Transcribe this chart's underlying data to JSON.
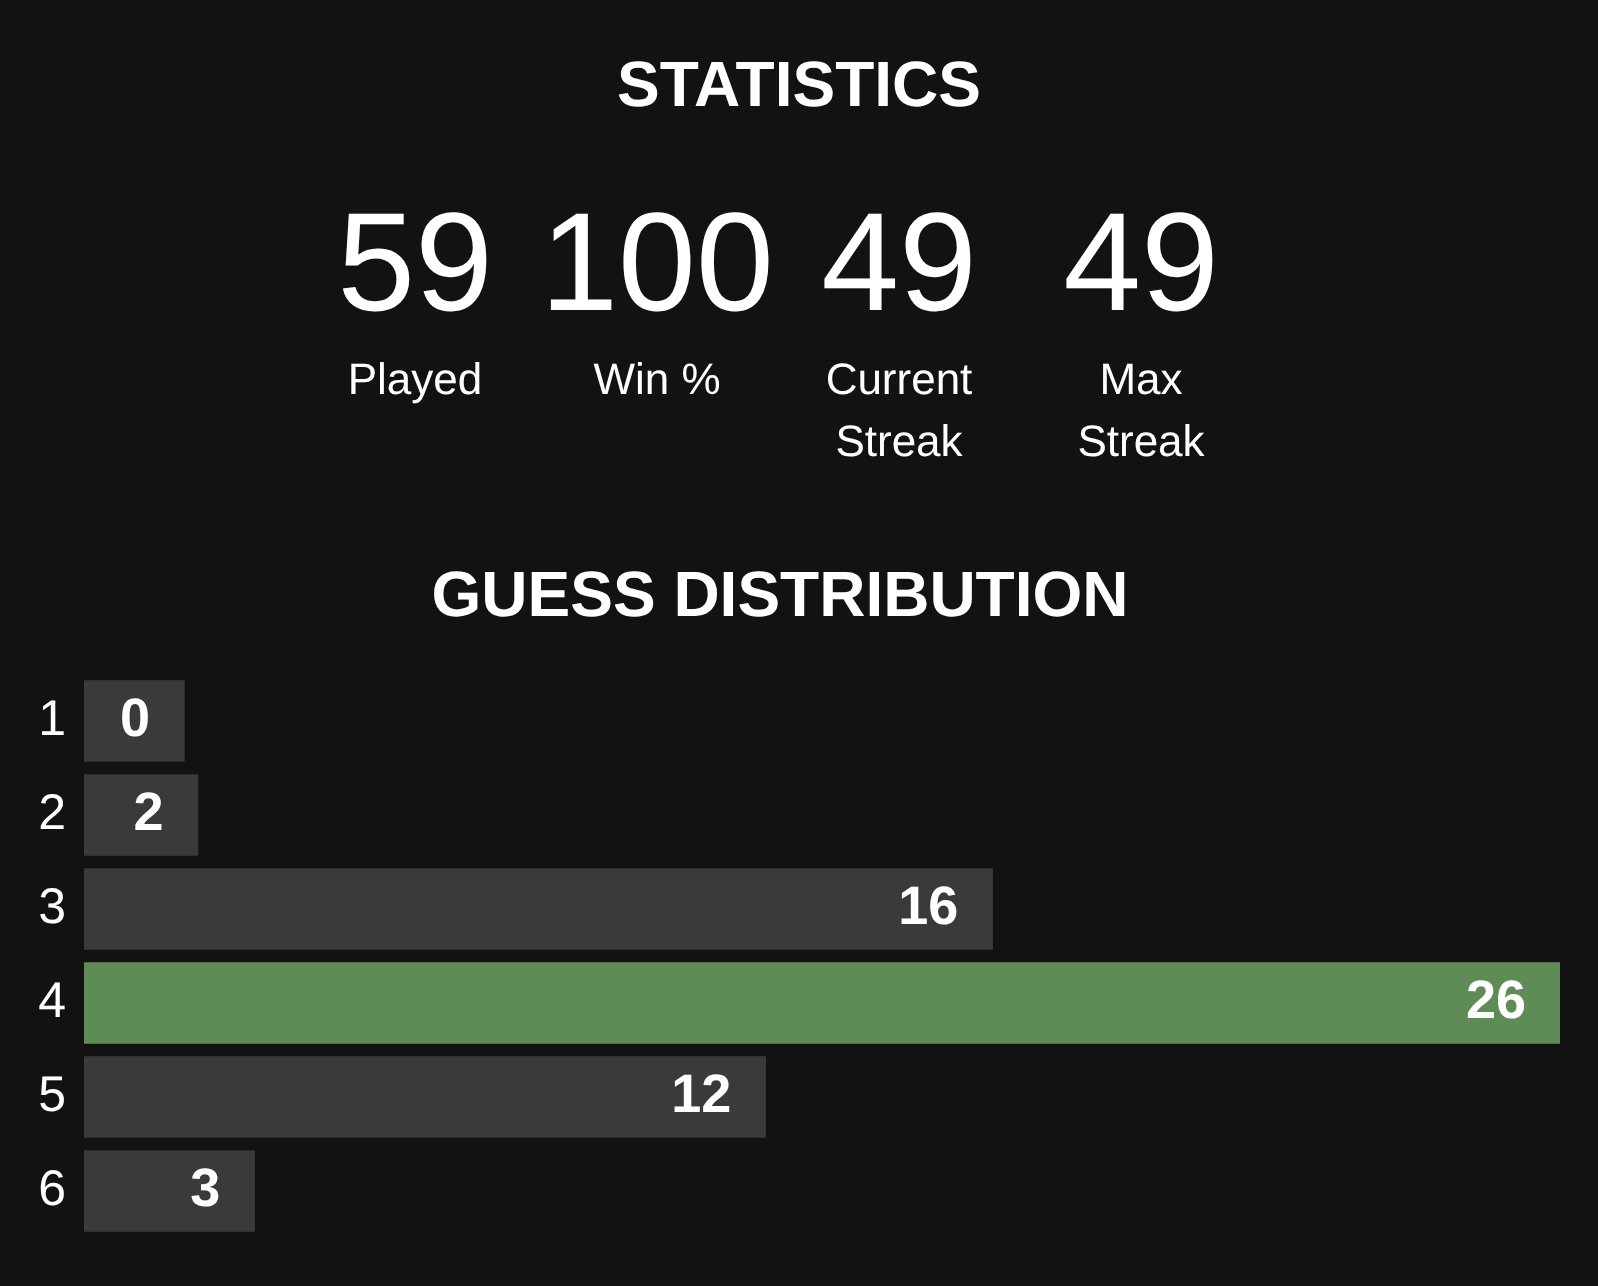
{
  "chart_data": [
    {
      "type": "other",
      "title": "STATISTICS",
      "categories": [
        "Played",
        "Win %",
        "Current Streak",
        "Max Streak"
      ],
      "values": [
        59,
        100,
        49,
        49
      ],
      "data_labels": true
    },
    {
      "type": "bar",
      "title": "GUESS DISTRIBUTION",
      "orientation": "horizontal",
      "categories": [
        "1",
        "2",
        "3",
        "4",
        "5",
        "6"
      ],
      "values": [
        0,
        2,
        16,
        26,
        12,
        3
      ],
      "colors": [
        "#3a3a3c",
        "#3a3a3c",
        "#3a3a3c",
        "#5f8b56",
        "#3a3a3c",
        "#3a3a3c"
      ],
      "data_labels": true
    }
  ]
}
